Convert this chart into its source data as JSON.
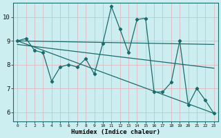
{
  "xlabel": "Humidex (Indice chaleur)",
  "bg_color": "#cceef0",
  "grid_color_major": "#e8b8c0",
  "grid_color_minor": "#b8dde0",
  "line_color": "#1a6b6b",
  "xlim": [
    -0.5,
    23.5
  ],
  "ylim": [
    5.6,
    10.6
  ],
  "yticks": [
    6,
    7,
    8,
    9,
    10
  ],
  "xticks": [
    0,
    1,
    2,
    3,
    4,
    5,
    6,
    7,
    8,
    9,
    10,
    11,
    12,
    13,
    14,
    15,
    16,
    17,
    18,
    19,
    20,
    21,
    22,
    23
  ],
  "data_x": [
    0,
    1,
    2,
    3,
    4,
    5,
    6,
    7,
    8,
    9,
    10,
    11,
    12,
    13,
    14,
    15,
    16,
    17,
    18,
    19,
    20,
    21,
    22,
    23
  ],
  "data_y": [
    9.0,
    9.1,
    8.6,
    8.5,
    7.3,
    7.9,
    8.0,
    7.9,
    8.25,
    7.6,
    8.9,
    10.45,
    9.5,
    8.5,
    9.9,
    9.95,
    6.85,
    6.85,
    7.25,
    9.0,
    6.3,
    7.0,
    6.5,
    5.95
  ],
  "trend1_x": [
    0,
    23
  ],
  "trend1_y": [
    9.0,
    8.85
  ],
  "trend2_x": [
    0,
    23
  ],
  "trend2_y": [
    8.85,
    7.85
  ],
  "trend3_x": [
    0,
    23
  ],
  "trend3_y": [
    9.0,
    5.95
  ]
}
